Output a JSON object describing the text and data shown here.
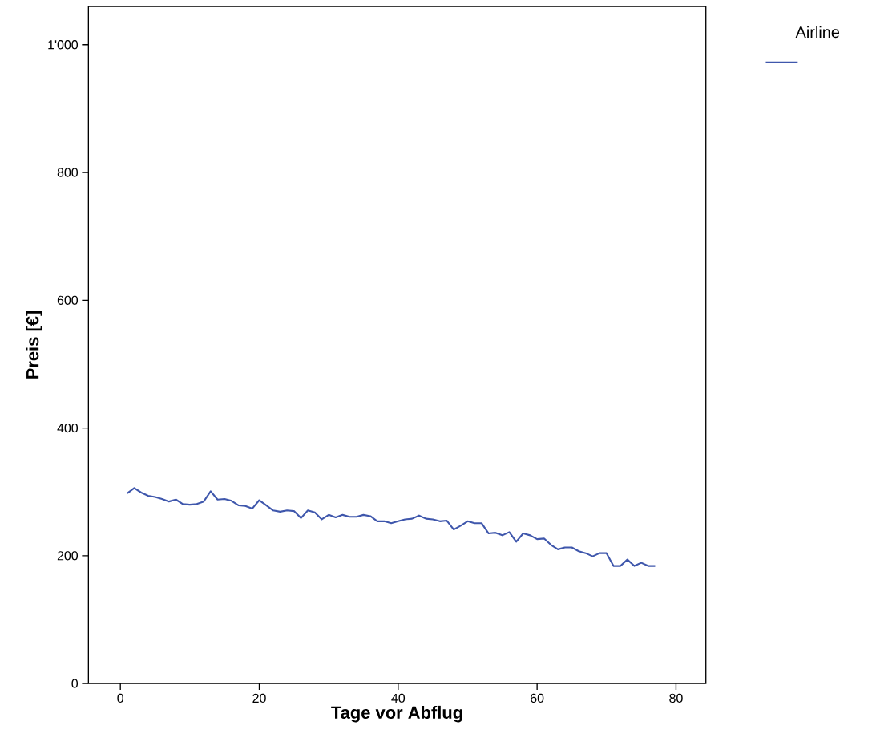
{
  "chart_data": {
    "type": "line",
    "xlabel": "Tage vor Abflug",
    "ylabel": "Preis [€]",
    "legend_title": "Airline",
    "x": [
      1,
      2,
      3,
      4,
      5,
      6,
      7,
      8,
      9,
      10,
      11,
      12,
      13,
      14,
      15,
      16,
      17,
      18,
      19,
      20,
      21,
      22,
      23,
      24,
      25,
      26,
      27,
      28,
      29,
      30,
      31,
      32,
      33,
      34,
      35,
      36,
      37,
      38,
      39,
      40,
      41,
      42,
      43,
      44,
      45,
      46,
      47,
      48,
      49,
      50,
      51,
      52,
      53,
      54,
      55,
      56,
      57,
      58,
      59,
      60,
      61,
      62,
      63,
      64,
      65,
      66,
      67,
      68,
      69,
      70,
      71,
      72,
      73,
      74,
      75,
      76,
      77
    ],
    "series": [
      {
        "color": "#3f57ac",
        "values": [
          298,
          306,
          299,
          294,
          292,
          289,
          285,
          288,
          281,
          280,
          281,
          285,
          301,
          288,
          289,
          286,
          279,
          278,
          274,
          287,
          279,
          271,
          269,
          271,
          270,
          259,
          271,
          268,
          257,
          264,
          260,
          264,
          261,
          261,
          264,
          262,
          254,
          254,
          251,
          254,
          257,
          258,
          263,
          258,
          257,
          254,
          255,
          241,
          247,
          254,
          251,
          251,
          235,
          236,
          232,
          237,
          222,
          235,
          232,
          226,
          227,
          217,
          210,
          213,
          213,
          207,
          204,
          199,
          204,
          204,
          184,
          184,
          194,
          184,
          189,
          184,
          184
        ]
      }
    ],
    "xlim": [
      -4.6,
      84.3
    ],
    "ylim": [
      0,
      1060
    ],
    "xticks": [
      0,
      20,
      40,
      60,
      80
    ],
    "yticks": [
      0,
      200,
      400,
      600,
      800,
      {
        "value": 1000,
        "label": "1'000"
      }
    ]
  }
}
